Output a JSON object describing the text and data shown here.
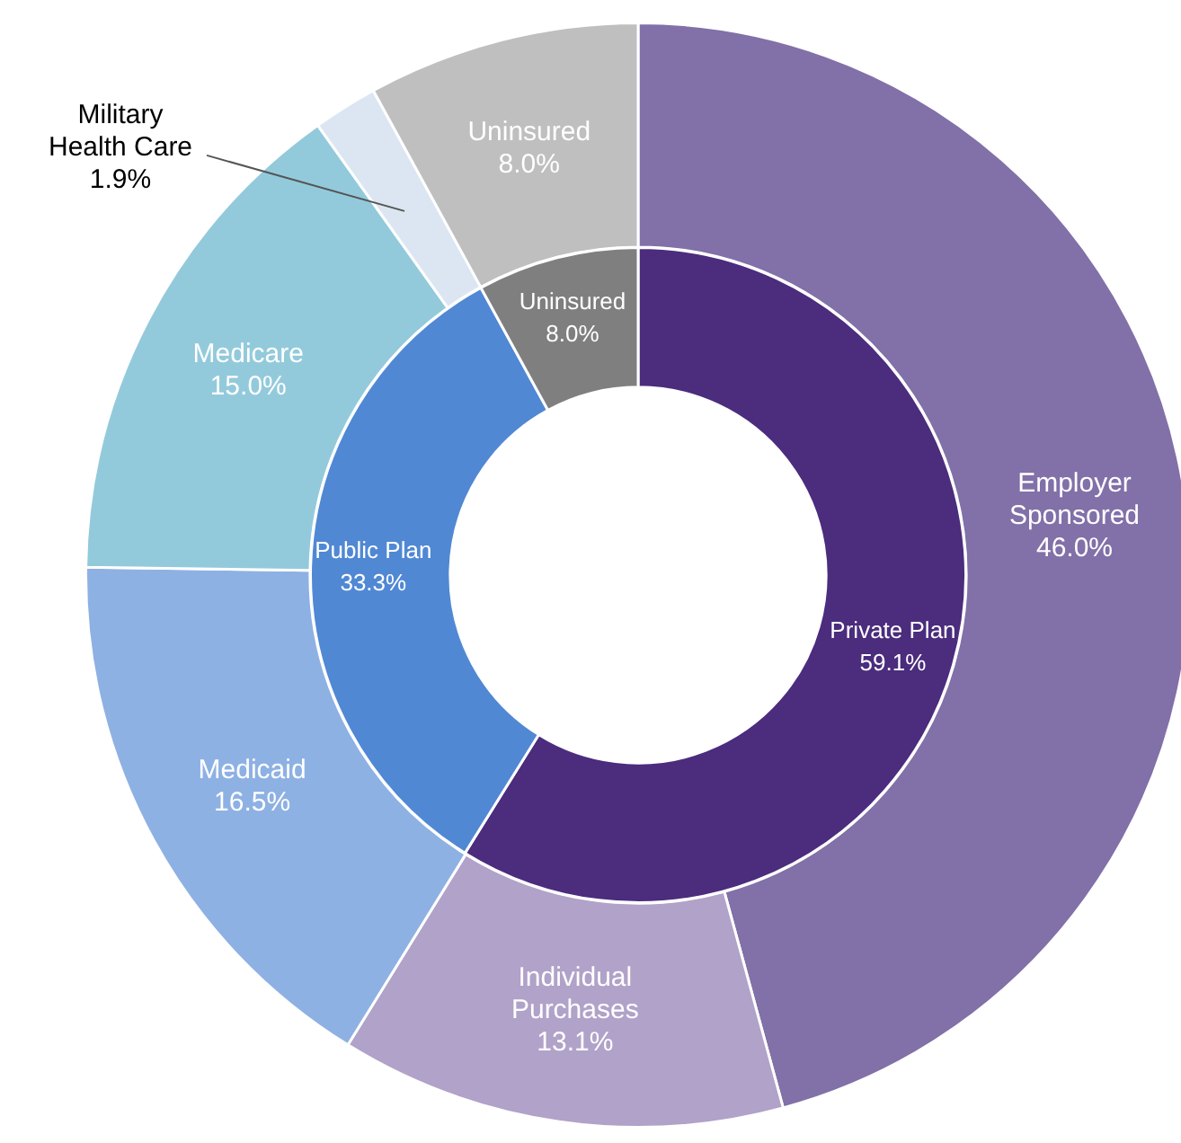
{
  "chart_data": [
    {
      "type": "donut",
      "legend": false,
      "categories": [
        "Employer Sponsored",
        "Individual Purchases",
        "Medicaid",
        "Medicare",
        "Military Health Care",
        "Uninsured"
      ],
      "values": [
        46.0,
        13.1,
        16.5,
        15.0,
        1.9,
        8.0
      ],
      "value_labels": [
        "46.0%",
        "13.1%",
        "16.5%",
        "15.0%",
        "1.9%",
        "8.0%"
      ],
      "colors": [
        "#8270a8",
        "#b1a2c9",
        "#8eb1e3",
        "#93cadb",
        "#dce6f2",
        "#bfbfbf"
      ]
    },
    {
      "type": "donut",
      "legend": false,
      "categories": [
        "Private Plan",
        "Public Plan",
        "Uninsured"
      ],
      "values": [
        59.1,
        33.3,
        8.0
      ],
      "value_labels": [
        "59.1%",
        "33.3%",
        "8.0%"
      ],
      "colors": [
        "#4b2c7d",
        "#5088d4",
        "#7f7f7f"
      ]
    }
  ]
}
